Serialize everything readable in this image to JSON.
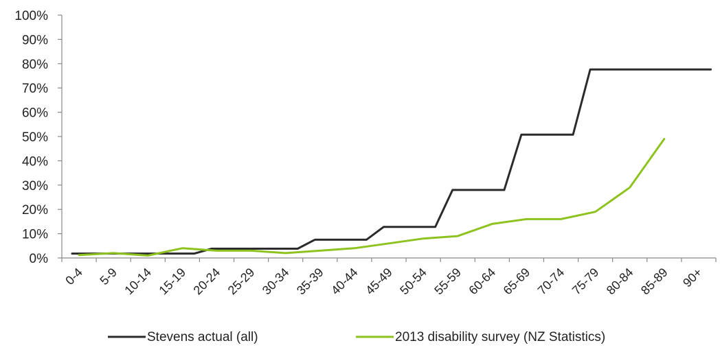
{
  "chart_data": {
    "type": "line",
    "title": "",
    "xlabel": "",
    "ylabel": "",
    "categories": [
      "0-4",
      "5-9",
      "10-14",
      "15-19",
      "20-24",
      "25-29",
      "30-34",
      "35-39",
      "40-44",
      "45-49",
      "50-54",
      "55-59",
      "60-64",
      "65-69",
      "70-74",
      "75-79",
      "80-84",
      "85-89",
      "90+"
    ],
    "y_tick_labels": [
      "0%",
      "10%",
      "20%",
      "30%",
      "40%",
      "50%",
      "60%",
      "70%",
      "80%",
      "90%",
      "100%"
    ],
    "ylim": [
      0,
      100
    ],
    "grid": false,
    "legend_position": "bottom",
    "series": [
      {
        "name": "Stevens actual (all)",
        "color": "#2b2b2b",
        "x_start": [
          0,
          1,
          2,
          3,
          4,
          5,
          6,
          7,
          8,
          9,
          10,
          11,
          12,
          13,
          14,
          15,
          16,
          17,
          18
        ],
        "values": [
          1.8,
          1.8,
          1.8,
          1.8,
          3.8,
          3.8,
          3.8,
          7.5,
          7.5,
          12.8,
          12.8,
          28,
          28,
          50.8,
          50.8,
          77.6,
          77.6,
          77.6,
          77.6
        ]
      },
      {
        "name": "2013 disability survey (NZ Statistics)",
        "color": "#8dc21f",
        "values": [
          1.2,
          2,
          1,
          4,
          3,
          3,
          2,
          3,
          4,
          6,
          8,
          9,
          14,
          16,
          16,
          19,
          29,
          49,
          null
        ]
      }
    ]
  }
}
